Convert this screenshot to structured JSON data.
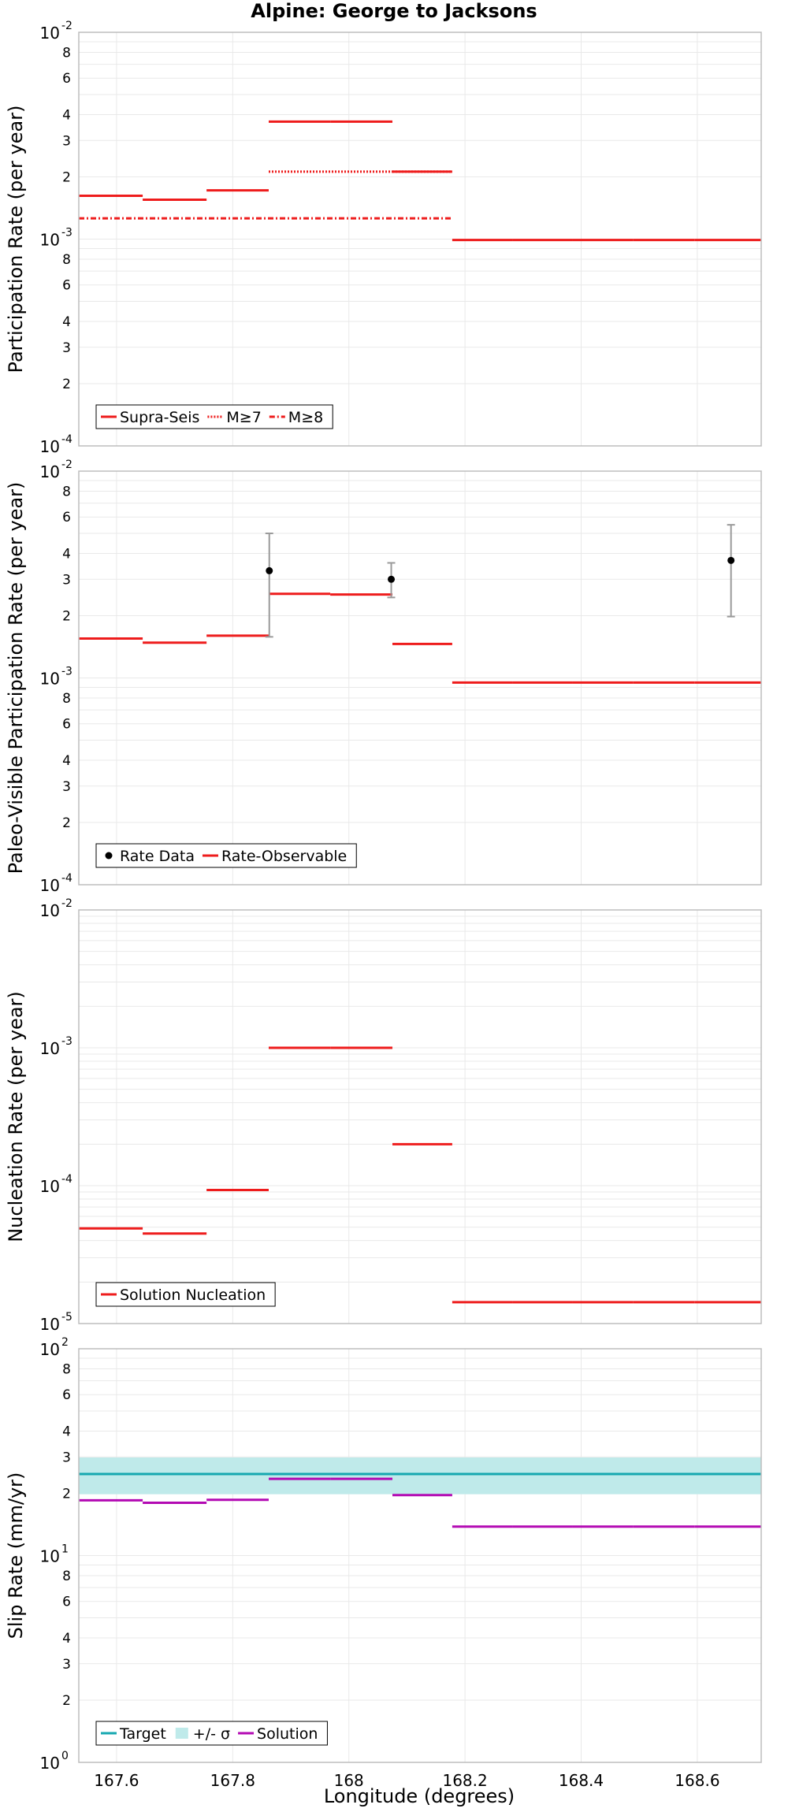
{
  "title": "Alpine: George to Jacksons",
  "x_axis": {
    "label": "Longitude (degrees)",
    "xlim": [
      167.535,
      168.71
    ],
    "ticks": [
      167.6,
      167.8,
      168,
      168.2,
      168.4,
      168.6
    ],
    "tick_labels": [
      "167.6",
      "167.8",
      "168",
      "168.2",
      "168.4",
      "168.6"
    ]
  },
  "colors": {
    "red": "#ee1c1c",
    "cyan": "#16a8b0",
    "band": "#bfeaea",
    "magenta": "#b30ab3",
    "grid": "#e9e9e9",
    "errorbar": "#9a9a9a"
  },
  "chart_data": [
    {
      "type": "line",
      "ylabel": "Participation Rate (per year)",
      "yscale": "log",
      "ylim": [
        0.0001,
        0.01
      ],
      "major_labels": [
        {
          "base": "10",
          "exp": "-4"
        },
        {
          "base": "10",
          "exp": "-3"
        },
        {
          "base": "10",
          "exp": "-2"
        }
      ],
      "grid": true,
      "legend": {
        "position": "bottom-left",
        "items": [
          {
            "label": "Supra-Seis",
            "style": "solid",
            "color": "#ee1c1c"
          },
          {
            "label": "M≥7",
            "style": "dotted",
            "color": "#ee1c1c"
          },
          {
            "label": "M≥8",
            "style": "dashdot",
            "color": "#ee1c1c"
          }
        ]
      },
      "series": [
        {
          "name": "Supra-Seis",
          "style": "solid",
          "color": "#ee1c1c",
          "segments": [
            {
              "x": [
                167.535,
                167.645
              ],
              "y": 0.00162
            },
            {
              "x": [
                167.645,
                167.755
              ],
              "y": 0.00155
            },
            {
              "x": [
                167.755,
                167.862
              ],
              "y": 0.00172
            },
            {
              "x": [
                167.862,
                167.968
              ],
              "y": 0.0037
            },
            {
              "x": [
                167.968,
                168.075
              ],
              "y": 0.0037
            },
            {
              "x": [
                168.075,
                168.178
              ],
              "y": 0.00212
            },
            {
              "x": [
                168.178,
                168.282
              ],
              "y": 0.00099
            },
            {
              "x": [
                168.282,
                168.385
              ],
              "y": 0.00099
            },
            {
              "x": [
                168.385,
                168.49
              ],
              "y": 0.00099
            },
            {
              "x": [
                168.49,
                168.595
              ],
              "y": 0.00099
            },
            {
              "x": [
                168.595,
                168.71
              ],
              "y": 0.00099
            }
          ]
        },
        {
          "name": "M≥7",
          "style": "dotted",
          "color": "#ee1c1c",
          "segments": [
            {
              "x": [
                167.862,
                168.075
              ],
              "y": 0.00212
            },
            {
              "x": [
                168.075,
                168.178
              ],
              "y": 0.00212
            }
          ]
        },
        {
          "name": "M≥8",
          "style": "dashdot",
          "color": "#ee1c1c",
          "segments": [
            {
              "x": [
                167.535,
                168.178
              ],
              "y": 0.00126
            }
          ]
        }
      ]
    },
    {
      "type": "line",
      "ylabel": "Paleo-Visible Participation Rate (per year)",
      "yscale": "log",
      "ylim": [
        0.0001,
        0.01
      ],
      "major_labels": [
        {
          "base": "10",
          "exp": "-4"
        },
        {
          "base": "10",
          "exp": "-3"
        },
        {
          "base": "10",
          "exp": "-2"
        }
      ],
      "grid": true,
      "legend": {
        "position": "bottom-left",
        "items": [
          {
            "label": "Rate Data",
            "style": "dot",
            "color": "#000000"
          },
          {
            "label": "Rate-Observable",
            "style": "solid",
            "color": "#ee1c1c"
          }
        ]
      },
      "points": [
        {
          "name": "Rate Data",
          "x": 167.863,
          "y": 0.0033,
          "ylow": 0.00158,
          "yhigh": 0.005
        },
        {
          "name": "Rate Data",
          "x": 168.073,
          "y": 0.003,
          "ylow": 0.00245,
          "yhigh": 0.0036
        },
        {
          "name": "Rate Data",
          "x": 168.658,
          "y": 0.0037,
          "ylow": 0.00198,
          "yhigh": 0.0055
        }
      ],
      "series": [
        {
          "name": "Rate-Observable",
          "style": "solid",
          "color": "#ee1c1c",
          "segments": [
            {
              "x": [
                167.535,
                167.645
              ],
              "y": 0.00155
            },
            {
              "x": [
                167.645,
                167.755
              ],
              "y": 0.00148
            },
            {
              "x": [
                167.755,
                167.862
              ],
              "y": 0.0016
            },
            {
              "x": [
                167.862,
                167.968
              ],
              "y": 0.00255
            },
            {
              "x": [
                167.968,
                168.075
              ],
              "y": 0.00253
            },
            {
              "x": [
                168.075,
                168.178
              ],
              "y": 0.00146
            },
            {
              "x": [
                168.178,
                168.282
              ],
              "y": 0.00095
            },
            {
              "x": [
                168.282,
                168.385
              ],
              "y": 0.00095
            },
            {
              "x": [
                168.385,
                168.49
              ],
              "y": 0.00095
            },
            {
              "x": [
                168.49,
                168.595
              ],
              "y": 0.00095
            },
            {
              "x": [
                168.595,
                168.71
              ],
              "y": 0.00095
            }
          ]
        }
      ]
    },
    {
      "type": "line",
      "ylabel": "Nucleation Rate (per year)",
      "yscale": "log",
      "ylim": [
        1e-05,
        0.01
      ],
      "major_labels": [
        {
          "base": "10",
          "exp": "-5"
        },
        {
          "base": "10",
          "exp": "-4"
        },
        {
          "base": "10",
          "exp": "-3"
        },
        {
          "base": "10",
          "exp": "-2"
        }
      ],
      "grid": true,
      "legend": {
        "position": "bottom-left",
        "items": [
          {
            "label": "Solution Nucleation",
            "style": "solid",
            "color": "#ee1c1c"
          }
        ]
      },
      "series": [
        {
          "name": "Solution Nucleation",
          "style": "solid",
          "color": "#ee1c1c",
          "segments": [
            {
              "x": [
                167.535,
                167.645
              ],
              "y": 4.9e-05
            },
            {
              "x": [
                167.645,
                167.755
              ],
              "y": 4.5e-05
            },
            {
              "x": [
                167.755,
                167.862
              ],
              "y": 9.3e-05
            },
            {
              "x": [
                167.862,
                167.968
              ],
              "y": 0.001
            },
            {
              "x": [
                167.968,
                168.075
              ],
              "y": 0.001
            },
            {
              "x": [
                168.075,
                168.178
              ],
              "y": 0.0002
            },
            {
              "x": [
                168.178,
                168.282
              ],
              "y": 1.43e-05
            },
            {
              "x": [
                168.282,
                168.385
              ],
              "y": 1.43e-05
            },
            {
              "x": [
                168.385,
                168.49
              ],
              "y": 1.43e-05
            },
            {
              "x": [
                168.49,
                168.595
              ],
              "y": 1.43e-05
            },
            {
              "x": [
                168.595,
                168.71
              ],
              "y": 1.43e-05
            }
          ]
        }
      ]
    },
    {
      "type": "line",
      "ylabel": "Slip Rate (mm/yr)",
      "yscale": "log",
      "ylim": [
        1,
        100
      ],
      "major_labels": [
        {
          "base": "10",
          "exp": "0"
        },
        {
          "base": "10",
          "exp": "1"
        },
        {
          "base": "10",
          "exp": "2"
        }
      ],
      "grid": true,
      "legend": {
        "position": "bottom-left",
        "items": [
          {
            "label": "Target",
            "style": "solid",
            "color": "#16a8b0"
          },
          {
            "label": "+/- σ",
            "style": "band",
            "color": "#bfeaea"
          },
          {
            "label": "Solution",
            "style": "solid",
            "color": "#b30ab3"
          }
        ]
      },
      "band": {
        "name": "+/- σ",
        "x": [
          167.535,
          168.71
        ],
        "ylow": 19.8,
        "yhigh": 29.8
      },
      "series": [
        {
          "name": "Target",
          "style": "solid",
          "color": "#16a8b0",
          "segments": [
            {
              "x": [
                167.535,
                168.71
              ],
              "y": 24.8
            }
          ]
        },
        {
          "name": "Solution",
          "style": "solid",
          "color": "#b30ab3",
          "segments": [
            {
              "x": [
                167.535,
                167.645
              ],
              "y": 18.5
            },
            {
              "x": [
                167.645,
                167.755
              ],
              "y": 18.0
            },
            {
              "x": [
                167.755,
                167.862
              ],
              "y": 18.6
            },
            {
              "x": [
                167.862,
                167.968
              ],
              "y": 23.5
            },
            {
              "x": [
                167.968,
                168.075
              ],
              "y": 23.5
            },
            {
              "x": [
                168.075,
                168.178
              ],
              "y": 19.6
            },
            {
              "x": [
                168.178,
                168.282
              ],
              "y": 13.8
            },
            {
              "x": [
                168.282,
                168.385
              ],
              "y": 13.8
            },
            {
              "x": [
                168.385,
                168.49
              ],
              "y": 13.8
            },
            {
              "x": [
                168.49,
                168.595
              ],
              "y": 13.8
            },
            {
              "x": [
                168.595,
                168.71
              ],
              "y": 13.8
            }
          ]
        }
      ]
    }
  ]
}
